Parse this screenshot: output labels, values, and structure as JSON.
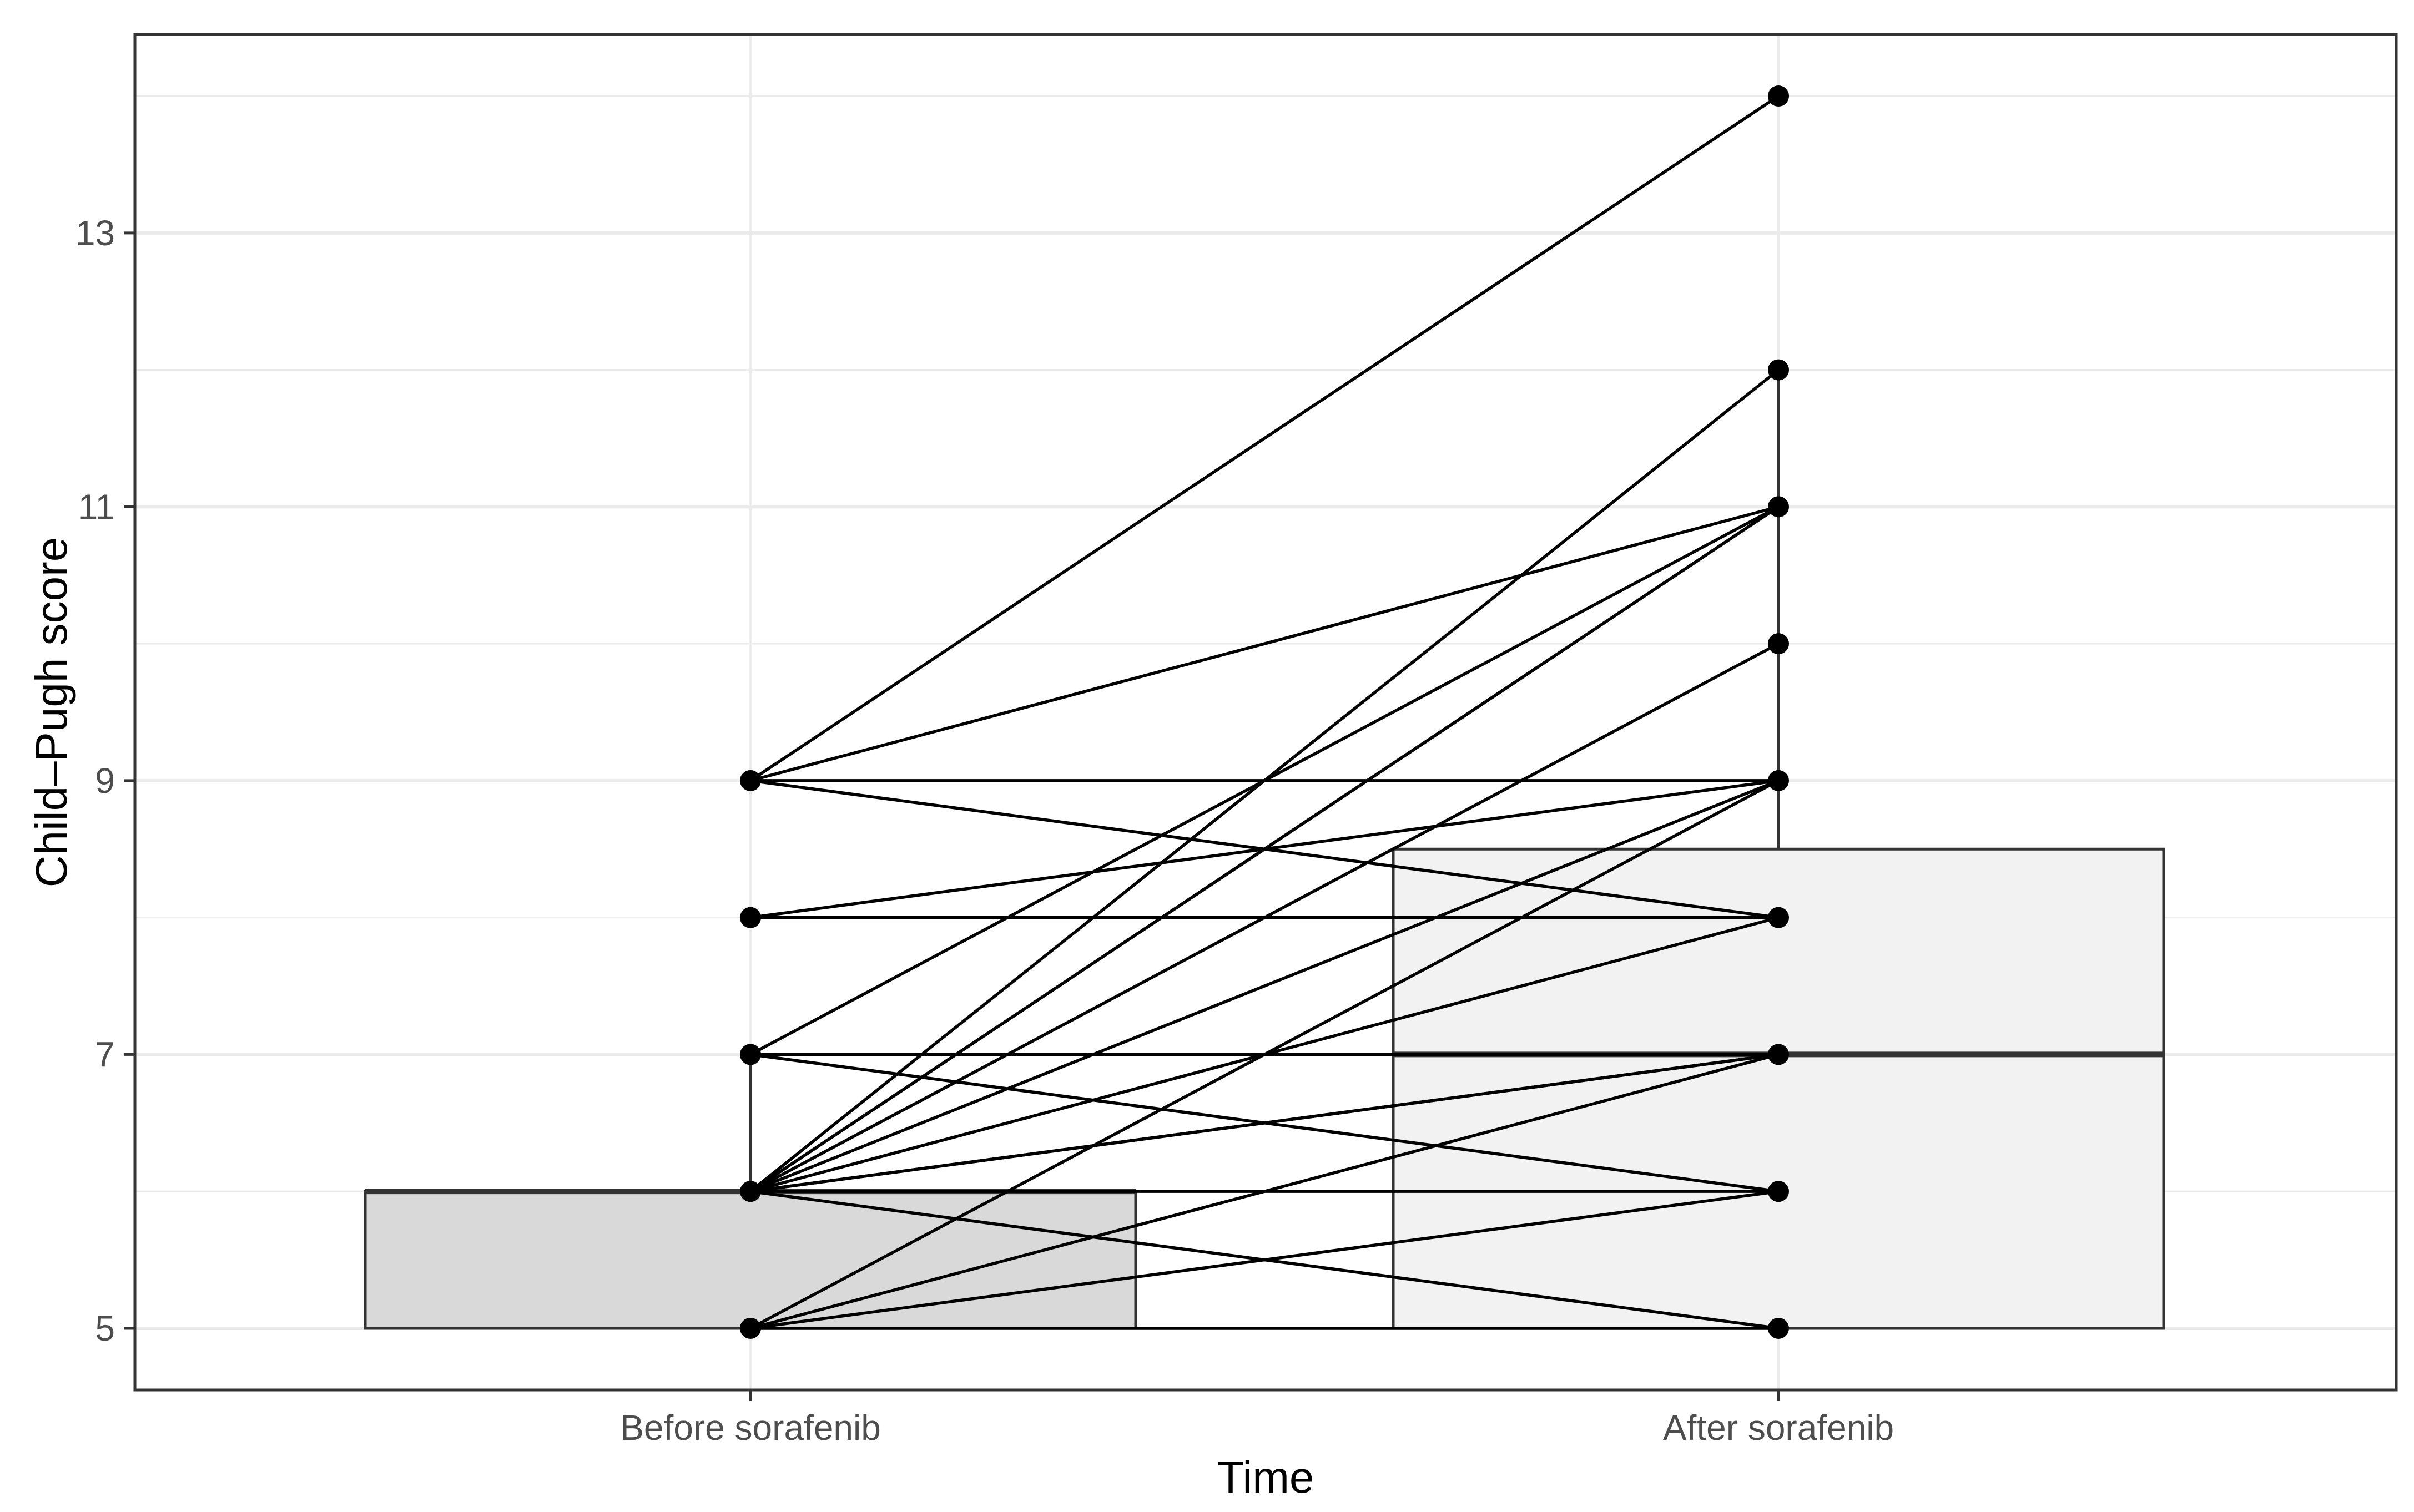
{
  "chart_data": {
    "type": "box",
    "xlabel": "Time",
    "ylabel": "Child–Pugh score",
    "categories": [
      "Before sorafenib",
      "After sorafenib"
    ],
    "ylim": [
      4.55,
      14.45
    ],
    "yticks": [
      5,
      7,
      9,
      11,
      13
    ],
    "grid": true,
    "legend": "none",
    "boxes": [
      {
        "category": "Before sorafenib",
        "q1": 5,
        "median": 6,
        "q3": 6,
        "whisker_low": 5,
        "whisker_high": 7,
        "fill": "#d9d9d9"
      },
      {
        "category": "After sorafenib",
        "q1": 5,
        "median": 7,
        "q3": 8.5,
        "whisker_low": 5,
        "whisker_high": 12,
        "fill": "#f2f2f2"
      }
    ],
    "outliers": [
      {
        "category": "Before sorafenib",
        "value": 8
      },
      {
        "category": "Before sorafenib",
        "value": 9
      },
      {
        "category": "After sorafenib",
        "value": 14
      }
    ],
    "paired_lines": [
      {
        "before": 9,
        "after": 14
      },
      {
        "before": 9,
        "after": 11
      },
      {
        "before": 9,
        "after": 9
      },
      {
        "before": 9,
        "after": 8
      },
      {
        "before": 8,
        "after": 9
      },
      {
        "before": 8,
        "after": 8
      },
      {
        "before": 7,
        "after": 11
      },
      {
        "before": 7,
        "after": 7
      },
      {
        "before": 7,
        "after": 6
      },
      {
        "before": 6,
        "after": 12
      },
      {
        "before": 6,
        "after": 11
      },
      {
        "before": 6,
        "after": 11
      },
      {
        "before": 6,
        "after": 10
      },
      {
        "before": 6,
        "after": 9
      },
      {
        "before": 6,
        "after": 8
      },
      {
        "before": 6,
        "after": 7
      },
      {
        "before": 6,
        "after": 7
      },
      {
        "before": 6,
        "after": 6
      },
      {
        "before": 6,
        "after": 5
      },
      {
        "before": 5,
        "after": 9
      },
      {
        "before": 5,
        "after": 7
      },
      {
        "before": 5,
        "after": 6
      },
      {
        "before": 5,
        "after": 5
      }
    ],
    "colors": {
      "line": "#000000",
      "point": "#000000",
      "box_stroke": "#333333",
      "grid": "#ebebeb",
      "panel_border": "#333333"
    }
  }
}
